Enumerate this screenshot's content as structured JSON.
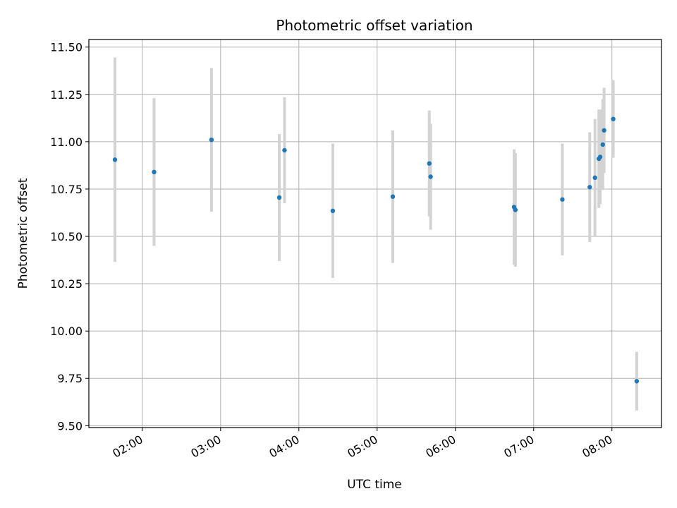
{
  "chart_data": {
    "type": "scatter",
    "title": "Photometric offset variation",
    "xlabel": "UTC time",
    "ylabel": "Photometric offset",
    "x_ticks": [
      "02:00",
      "03:00",
      "04:00",
      "05:00",
      "06:00",
      "07:00",
      "08:00"
    ],
    "y_ticks": [
      "9.50",
      "9.75",
      "10.00",
      "10.25",
      "10.50",
      "10.75",
      "11.00",
      "11.25",
      "11.50"
    ],
    "xlim": [
      "01:19",
      "08:38"
    ],
    "ylim": [
      9.49,
      11.54
    ],
    "grid": true,
    "legend": "none",
    "colors": {
      "point": "#1f77b4",
      "errorbar": "#d3d3d3",
      "grid": "#b0b0b0"
    },
    "points": [
      {
        "x": "01:39",
        "y": 10.905,
        "yerr": 0.54
      },
      {
        "x": "02:09",
        "y": 10.84,
        "yerr": 0.39
      },
      {
        "x": "02:53",
        "y": 11.01,
        "yerr": 0.38
      },
      {
        "x": "03:45",
        "y": 10.705,
        "yerr": 0.335
      },
      {
        "x": "03:49",
        "y": 10.955,
        "yerr": 0.28
      },
      {
        "x": "04:26",
        "y": 10.635,
        "yerr": 0.355
      },
      {
        "x": "05:12",
        "y": 10.71,
        "yerr": 0.35
      },
      {
        "x": "05:40",
        "y": 10.885,
        "yerr": 0.28
      },
      {
        "x": "05:41",
        "y": 10.815,
        "yerr": 0.28
      },
      {
        "x": "06:45",
        "y": 10.655,
        "yerr": 0.305
      },
      {
        "x": "06:46",
        "y": 10.64,
        "yerr": 0.3
      },
      {
        "x": "07:22",
        "y": 10.695,
        "yerr": 0.295
      },
      {
        "x": "07:43",
        "y": 10.76,
        "yerr": 0.29
      },
      {
        "x": "07:47",
        "y": 10.81,
        "yerr": 0.31
      },
      {
        "x": "07:50",
        "y": 10.91,
        "yerr": 0.26
      },
      {
        "x": "07:51",
        "y": 10.92,
        "yerr": 0.25
      },
      {
        "x": "07:53",
        "y": 10.985,
        "yerr": 0.24
      },
      {
        "x": "07:54",
        "y": 11.06,
        "yerr": 0.225
      },
      {
        "x": "08:01",
        "y": 11.12,
        "yerr": 0.205
      },
      {
        "x": "08:19",
        "y": 9.735,
        "yerr": 0.155
      }
    ]
  }
}
